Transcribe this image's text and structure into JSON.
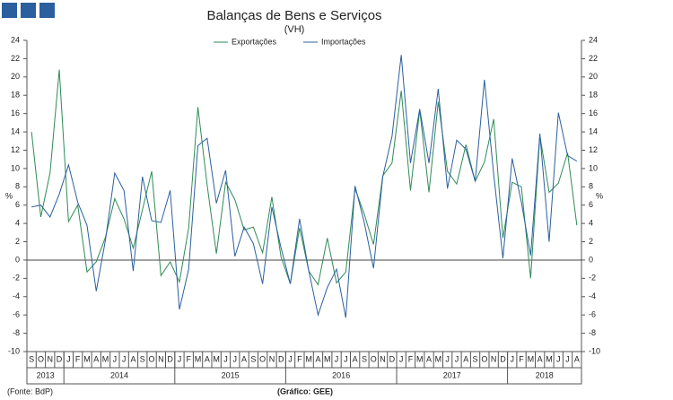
{
  "chart_data": {
    "type": "line",
    "title": "Balanças de Bens e Serviços",
    "subtitle": "(VH)",
    "y_label": "%",
    "y2_label": "%",
    "source": "(Fonte: BdP)",
    "credit": "(Gráfico: GEE)",
    "categories": [
      "S",
      "O",
      "N",
      "D",
      "J",
      "F",
      "M",
      "A",
      "M",
      "J",
      "J",
      "A",
      "S",
      "O",
      "N",
      "D",
      "J",
      "F",
      "M",
      "A",
      "M",
      "J",
      "J",
      "A",
      "S",
      "O",
      "N",
      "D",
      "J",
      "F",
      "M",
      "A",
      "M",
      "J",
      "J",
      "A",
      "S",
      "O",
      "N",
      "D",
      "J",
      "F",
      "M",
      "A",
      "M",
      "J",
      "J",
      "A",
      "S",
      "O",
      "N",
      "D",
      "J",
      "F",
      "M",
      "A",
      "M",
      "J",
      "J",
      "A"
    ],
    "years": [
      "2013",
      "2014",
      "2015",
      "2016",
      "2017",
      "2018"
    ],
    "series": [
      {
        "name": "Exportações",
        "color": "#2e8b57",
        "values": [
          14,
          4.7,
          9.5,
          20.8,
          4.2,
          6,
          -1.3,
          -0.2,
          2.5,
          6.7,
          4.5,
          1.3,
          5.5,
          9.7,
          -1.7,
          -0.2,
          -2.4,
          3.5,
          16.7,
          8.2,
          0.7,
          8.5,
          6.6,
          3.3,
          3.6,
          0.8,
          6.9,
          0.3,
          -2.6,
          3.5,
          -1.2,
          -2.7,
          2.4,
          -2.5,
          -1.3,
          7.8,
          5,
          1.7,
          9.2,
          10.6,
          18.5,
          7.6,
          16.4,
          7.4,
          17.3,
          9.7,
          8.3,
          12.6,
          8.6,
          10.7,
          15.4,
          2.4,
          8.5,
          8,
          -2,
          13.6,
          7.4,
          8.4,
          11.7,
          3.8
        ]
      },
      {
        "name": "Importações",
        "color": "#2b5f9e",
        "values": [
          5.8,
          6,
          4.7,
          7.2,
          10.4,
          6.3,
          3.8,
          -3.4,
          2.2,
          9.5,
          7.6,
          -1.2,
          9.1,
          4.3,
          4.1,
          7.6,
          -5.4,
          -1,
          12.5,
          13.3,
          6.2,
          9.8,
          0.4,
          3.6,
          1.8,
          -2.6,
          5.8,
          1.3,
          -2.6,
          4.5,
          -1.2,
          -6,
          -3,
          -1,
          -6.3,
          8.1,
          4.1,
          -0.9,
          9.1,
          13.5,
          22.4,
          10.6,
          16.5,
          10.6,
          18.7,
          7.8,
          13.1,
          12.1,
          8.6,
          19.7,
          9.4,
          0.2,
          11.1,
          6.3,
          0.5,
          13.8,
          2,
          16.1,
          11.4,
          10.8
        ]
      }
    ],
    "ylim": [
      -10,
      24
    ],
    "yticks": [
      -10,
      -8,
      -6,
      -4,
      -2,
      0,
      2,
      4,
      6,
      8,
      10,
      12,
      14,
      16,
      18,
      20,
      22,
      24
    ],
    "y2lim": [
      -10,
      24
    ],
    "y2ticks": [
      -10,
      -8,
      -6,
      -4,
      -2,
      0,
      2,
      4,
      6,
      8,
      10,
      12,
      14,
      16,
      18,
      20,
      22,
      24
    ]
  }
}
